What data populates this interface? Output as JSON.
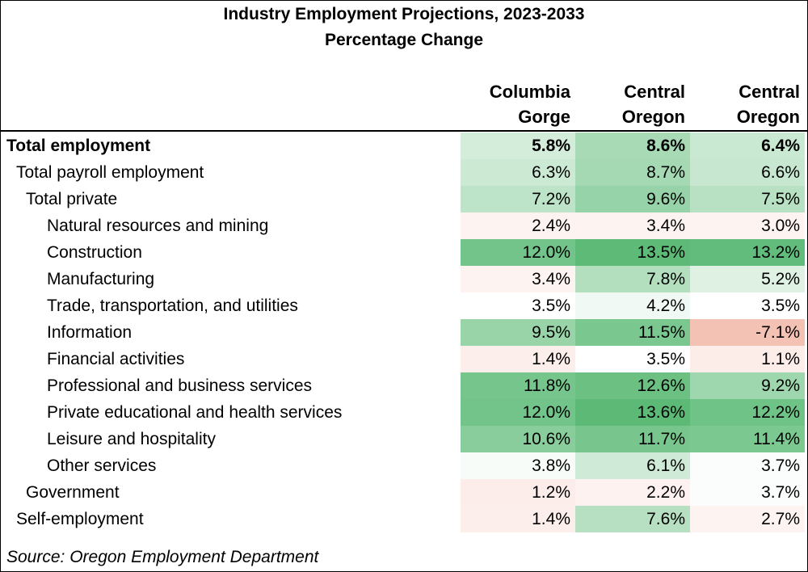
{
  "header": {
    "title": "Industry Employment Projections, 2023-2033",
    "subtitle": "Percentage Change"
  },
  "table": {
    "columns": [
      [
        "Columbia",
        "Gorge"
      ],
      [
        "Central",
        "Oregon"
      ],
      [
        "Central",
        "Oregon"
      ]
    ],
    "rows": [
      [
        "Total employment",
        "5.8%",
        "8.6%",
        "6.4%"
      ],
      [
        "Total payroll employment",
        "6.3%",
        "8.7%",
        "6.6%"
      ],
      [
        "Total private",
        "7.2%",
        "9.6%",
        "7.5%"
      ],
      [
        "Natural resources and mining",
        "2.4%",
        "3.4%",
        "3.0%"
      ],
      [
        "Construction",
        "12.0%",
        "13.5%",
        "13.2%"
      ],
      [
        "Manufacturing",
        "3.4%",
        "7.8%",
        "5.2%"
      ],
      [
        "Trade, transportation, and utilities",
        "3.5%",
        "4.2%",
        "3.5%"
      ],
      [
        "Information",
        "9.5%",
        "11.5%",
        "-7.1%"
      ],
      [
        "Financial activities",
        "1.4%",
        "3.5%",
        "1.1%"
      ],
      [
        "Professional and business services",
        "11.8%",
        "12.6%",
        "9.2%"
      ],
      [
        "Private educational and health services",
        "12.0%",
        "13.6%",
        "12.2%"
      ],
      [
        "Leisure and hospitality",
        "10.6%",
        "11.7%",
        "11.4%"
      ],
      [
        "Other services",
        "3.8%",
        "6.1%",
        "3.7%"
      ],
      [
        "Government",
        "1.2%",
        "2.2%",
        "3.7%"
      ],
      [
        "Self-employment",
        "1.4%",
        "7.6%",
        "2.7%"
      ]
    ]
  },
  "source": "Source: Oregon Employment Department"
}
